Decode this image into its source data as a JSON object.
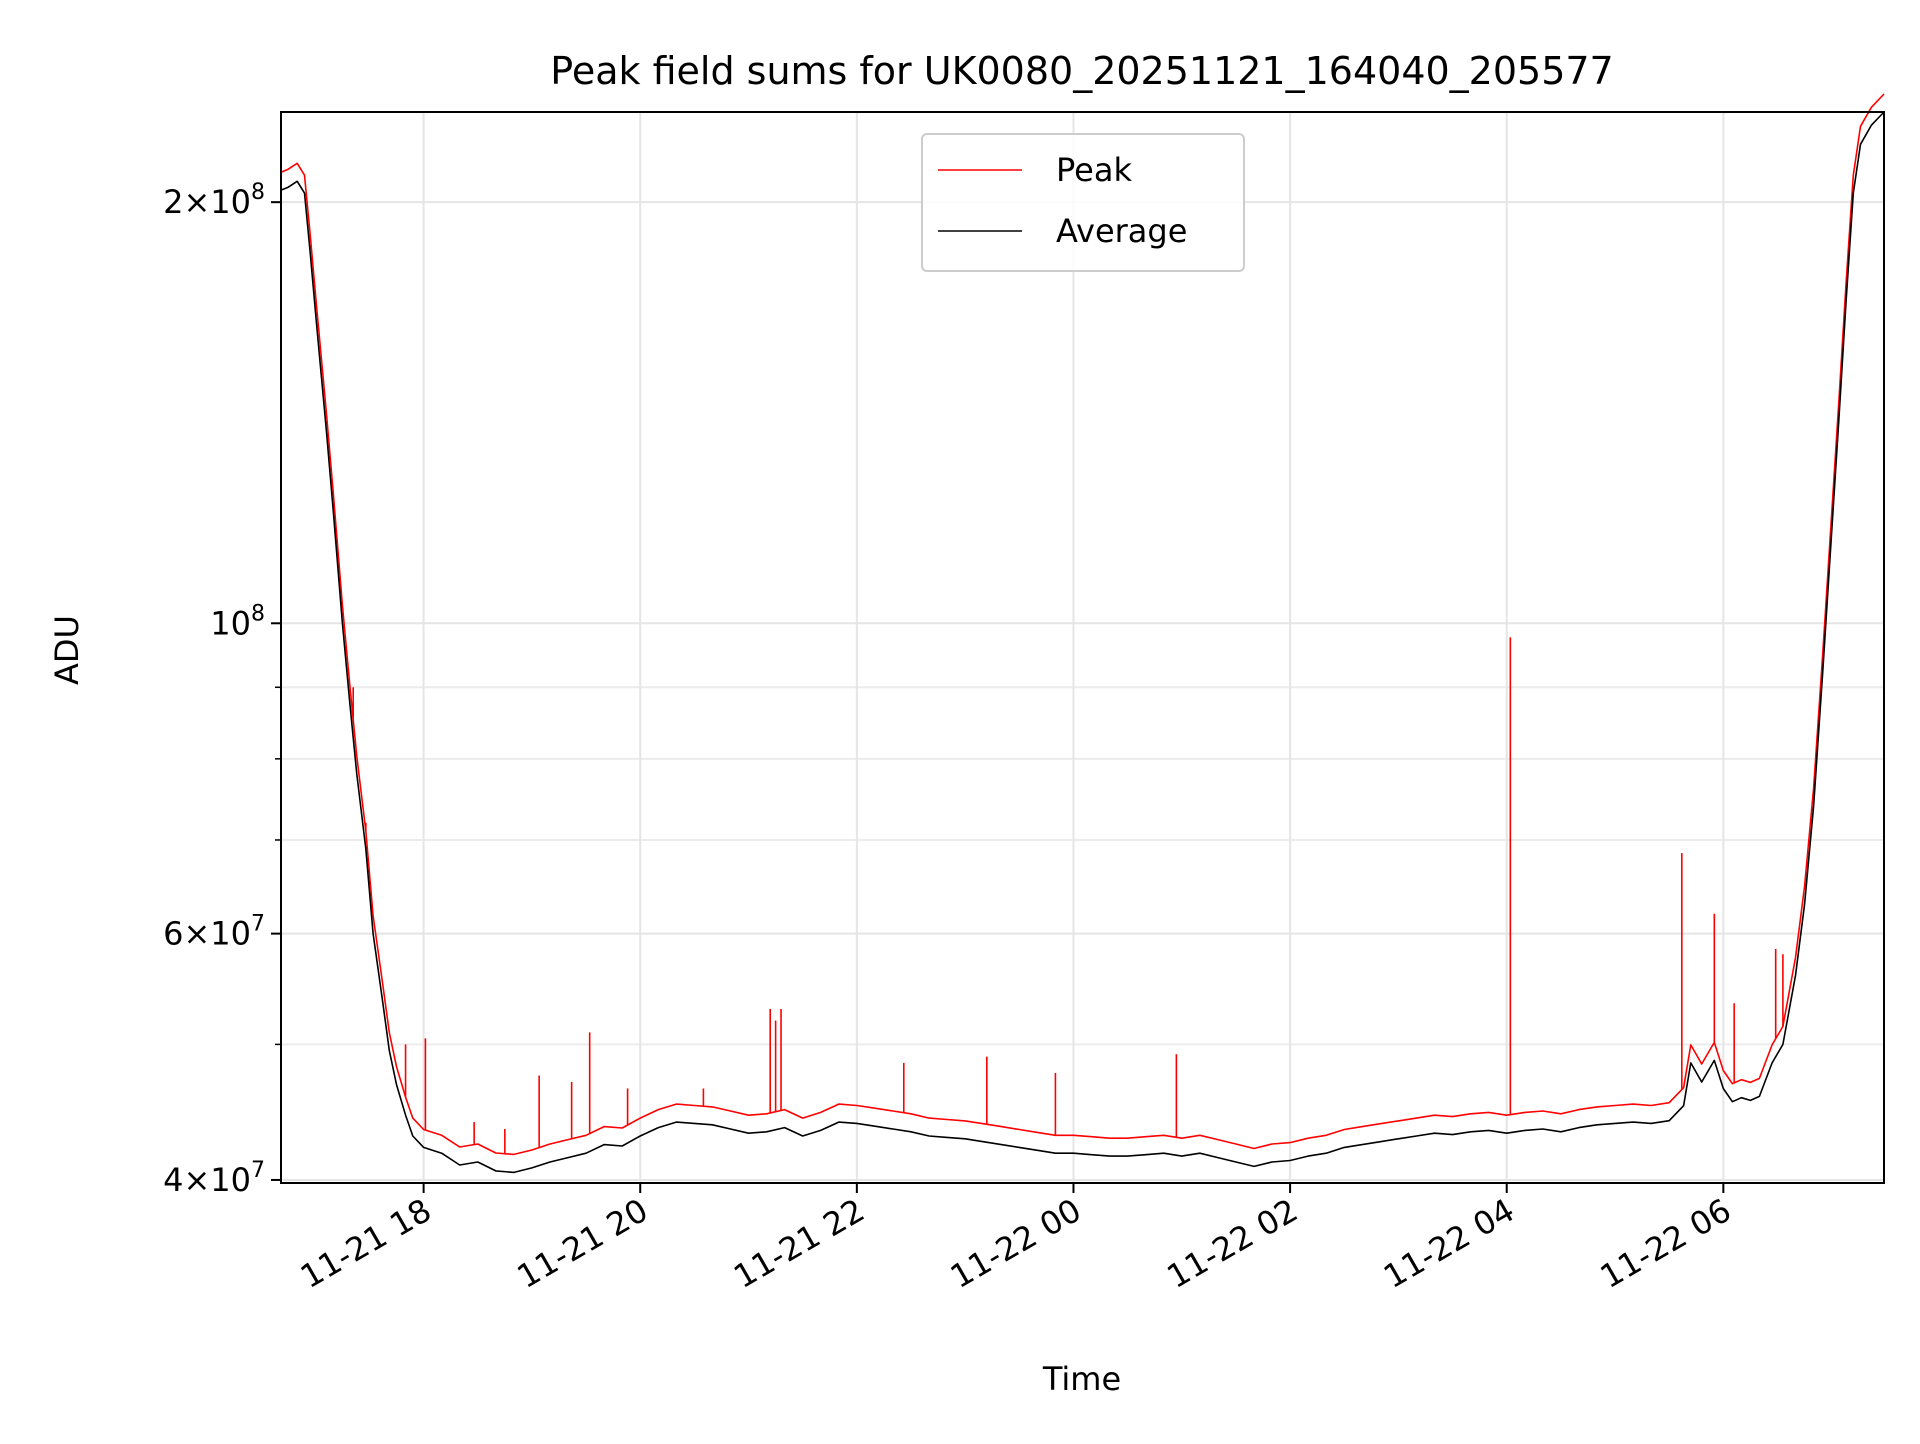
{
  "chart_data": {
    "type": "line",
    "title": "Peak field sums for UK0080_20251121_164040_205577",
    "xlabel": "Time",
    "ylabel": "ADU",
    "y_scale": "log",
    "ylim": [
      39800000,
      232000000
    ],
    "xlim": [
      "2025-11-21 16:41",
      "2025-11-22 07:29"
    ],
    "grid": true,
    "legend_position": "top-center",
    "x_ticks": [
      {
        "value": "2025-11-21 18:00",
        "label": "11-21 18"
      },
      {
        "value": "2025-11-21 20:00",
        "label": "11-21 20"
      },
      {
        "value": "2025-11-21 22:00",
        "label": "11-21 22"
      },
      {
        "value": "2025-11-22 00:00",
        "label": "11-22 00"
      },
      {
        "value": "2025-11-22 02:00",
        "label": "11-22 02"
      },
      {
        "value": "2025-11-22 04:00",
        "label": "11-22 04"
      },
      {
        "value": "2025-11-22 06:00",
        "label": "11-22 06"
      }
    ],
    "y_major_ticks": [
      {
        "value": 40000000,
        "mantissa": "4",
        "base": "10",
        "exp": "7"
      },
      {
        "value": 60000000,
        "mantissa": "6",
        "base": "10",
        "exp": "7"
      },
      {
        "value": 100000000,
        "mantissa": "",
        "base": "10",
        "exp": "8"
      },
      {
        "value": 200000000,
        "mantissa": "2",
        "base": "10",
        "exp": "8"
      }
    ],
    "y_minor_ticks": [
      50000000,
      70000000,
      80000000,
      90000000
    ],
    "series": [
      {
        "name": "Average",
        "color": "#000000",
        "points": [
          [
            "2025-11-21 16:41",
            204000000
          ],
          [
            "2025-11-21 16:45",
            205000000
          ],
          [
            "2025-11-21 16:50",
            207000000
          ],
          [
            "2025-11-21 16:54",
            203000000
          ],
          [
            "2025-11-21 16:57",
            185000000
          ],
          [
            "2025-11-21 17:01",
            162000000
          ],
          [
            "2025-11-21 17:06",
            138000000
          ],
          [
            "2025-11-21 17:10",
            120000000
          ],
          [
            "2025-11-21 17:15",
            100000000
          ],
          [
            "2025-11-21 17:19",
            88000000
          ],
          [
            "2025-11-21 17:23",
            78000000
          ],
          [
            "2025-11-21 17:28",
            69000000
          ],
          [
            "2025-11-21 17:32",
            60000000
          ],
          [
            "2025-11-21 17:37",
            54000000
          ],
          [
            "2025-11-21 17:41",
            49500000
          ],
          [
            "2025-11-21 17:45",
            46800000
          ],
          [
            "2025-11-21 17:50",
            44500000
          ],
          [
            "2025-11-21 17:54",
            43000000
          ],
          [
            "2025-11-21 18:00",
            42200000
          ],
          [
            "2025-11-21 18:10",
            41800000
          ],
          [
            "2025-11-21 18:20",
            41000000
          ],
          [
            "2025-11-21 18:30",
            41200000
          ],
          [
            "2025-11-21 18:40",
            40600000
          ],
          [
            "2025-11-21 18:50",
            40500000
          ],
          [
            "2025-11-21 19:00",
            40800000
          ],
          [
            "2025-11-21 19:10",
            41200000
          ],
          [
            "2025-11-21 19:20",
            41500000
          ],
          [
            "2025-11-21 19:30",
            41800000
          ],
          [
            "2025-11-21 19:40",
            42400000
          ],
          [
            "2025-11-21 19:50",
            42300000
          ],
          [
            "2025-11-21 20:00",
            43000000
          ],
          [
            "2025-11-21 20:10",
            43600000
          ],
          [
            "2025-11-21 20:20",
            44000000
          ],
          [
            "2025-11-21 20:30",
            43900000
          ],
          [
            "2025-11-21 20:40",
            43800000
          ],
          [
            "2025-11-21 20:50",
            43500000
          ],
          [
            "2025-11-21 21:00",
            43200000
          ],
          [
            "2025-11-21 21:10",
            43300000
          ],
          [
            "2025-11-21 21:20",
            43600000
          ],
          [
            "2025-11-21 21:30",
            43000000
          ],
          [
            "2025-11-21 21:40",
            43400000
          ],
          [
            "2025-11-21 21:50",
            44000000
          ],
          [
            "2025-11-21 22:00",
            43900000
          ],
          [
            "2025-11-21 22:10",
            43700000
          ],
          [
            "2025-11-21 22:20",
            43500000
          ],
          [
            "2025-11-21 22:30",
            43300000
          ],
          [
            "2025-11-21 22:40",
            43000000
          ],
          [
            "2025-11-21 22:50",
            42900000
          ],
          [
            "2025-11-21 23:00",
            42800000
          ],
          [
            "2025-11-21 23:10",
            42600000
          ],
          [
            "2025-11-21 23:20",
            42400000
          ],
          [
            "2025-11-21 23:30",
            42200000
          ],
          [
            "2025-11-21 23:40",
            42000000
          ],
          [
            "2025-11-21 23:50",
            41800000
          ],
          [
            "2025-11-22 00:00",
            41800000
          ],
          [
            "2025-11-22 00:10",
            41700000
          ],
          [
            "2025-11-22 00:20",
            41600000
          ],
          [
            "2025-11-22 00:30",
            41600000
          ],
          [
            "2025-11-22 00:40",
            41700000
          ],
          [
            "2025-11-22 00:50",
            41800000
          ],
          [
            "2025-11-22 01:00",
            41600000
          ],
          [
            "2025-11-22 01:10",
            41800000
          ],
          [
            "2025-11-22 01:20",
            41500000
          ],
          [
            "2025-11-22 01:30",
            41200000
          ],
          [
            "2025-11-22 01:40",
            40900000
          ],
          [
            "2025-11-22 01:50",
            41200000
          ],
          [
            "2025-11-22 02:00",
            41300000
          ],
          [
            "2025-11-22 02:10",
            41600000
          ],
          [
            "2025-11-22 02:20",
            41800000
          ],
          [
            "2025-11-22 02:30",
            42200000
          ],
          [
            "2025-11-22 02:40",
            42400000
          ],
          [
            "2025-11-22 02:50",
            42600000
          ],
          [
            "2025-11-22 03:00",
            42800000
          ],
          [
            "2025-11-22 03:10",
            43000000
          ],
          [
            "2025-11-22 03:20",
            43200000
          ],
          [
            "2025-11-22 03:30",
            43100000
          ],
          [
            "2025-11-22 03:40",
            43300000
          ],
          [
            "2025-11-22 03:50",
            43400000
          ],
          [
            "2025-11-22 04:00",
            43200000
          ],
          [
            "2025-11-22 04:10",
            43400000
          ],
          [
            "2025-11-22 04:20",
            43500000
          ],
          [
            "2025-11-22 04:30",
            43300000
          ],
          [
            "2025-11-22 04:40",
            43600000
          ],
          [
            "2025-11-22 04:50",
            43800000
          ],
          [
            "2025-11-22 05:00",
            43900000
          ],
          [
            "2025-11-22 05:10",
            44000000
          ],
          [
            "2025-11-22 05:20",
            43900000
          ],
          [
            "2025-11-22 05:30",
            44100000
          ],
          [
            "2025-11-22 05:38",
            45200000
          ],
          [
            "2025-11-22 05:42",
            48500000
          ],
          [
            "2025-11-22 05:48",
            47000000
          ],
          [
            "2025-11-22 05:55",
            48700000
          ],
          [
            "2025-11-22 06:00",
            46500000
          ],
          [
            "2025-11-22 06:05",
            45500000
          ],
          [
            "2025-11-22 06:10",
            45800000
          ],
          [
            "2025-11-22 06:15",
            45600000
          ],
          [
            "2025-11-22 06:20",
            45900000
          ],
          [
            "2025-11-22 06:27",
            48500000
          ],
          [
            "2025-11-22 06:33",
            50000000
          ],
          [
            "2025-11-22 06:40",
            56000000
          ],
          [
            "2025-11-22 06:45",
            63000000
          ],
          [
            "2025-11-22 06:50",
            74000000
          ],
          [
            "2025-11-22 06:55",
            92000000
          ],
          [
            "2025-11-22 07:00",
            116000000
          ],
          [
            "2025-11-22 07:04",
            140000000
          ],
          [
            "2025-11-22 07:08",
            170000000
          ],
          [
            "2025-11-22 07:12",
            203000000
          ],
          [
            "2025-11-22 07:16",
            220000000
          ],
          [
            "2025-11-22 07:22",
            227000000
          ],
          [
            "2025-11-22 07:29",
            232000000
          ]
        ]
      },
      {
        "name": "Peak",
        "color": "#ff0000",
        "offset_ratio": 1.03,
        "spikes": [
          [
            "2025-11-21 17:21",
            90000000
          ],
          [
            "2025-11-21 17:28",
            72000000
          ],
          [
            "2025-11-21 17:50",
            50000000
          ],
          [
            "2025-11-21 18:01",
            50500000
          ],
          [
            "2025-11-21 18:28",
            44000000
          ],
          [
            "2025-11-21 18:45",
            43500000
          ],
          [
            "2025-11-21 19:04",
            47500000
          ],
          [
            "2025-11-21 19:22",
            47000000
          ],
          [
            "2025-11-21 19:32",
            51000000
          ],
          [
            "2025-11-21 19:53",
            46500000
          ],
          [
            "2025-11-21 20:35",
            46500000
          ],
          [
            "2025-11-21 21:12",
            53000000
          ],
          [
            "2025-11-21 21:15",
            52000000
          ],
          [
            "2025-11-21 21:18",
            53000000
          ],
          [
            "2025-11-21 22:26",
            48500000
          ],
          [
            "2025-11-21 23:12",
            49000000
          ],
          [
            "2025-11-21 23:50",
            47700000
          ],
          [
            "2025-11-22 00:57",
            49200000
          ],
          [
            "2025-11-22 04:02",
            97700000
          ],
          [
            "2025-11-22 05:37",
            68500000
          ],
          [
            "2025-11-22 05:55",
            62000000
          ],
          [
            "2025-11-22 06:06",
            53500000
          ],
          [
            "2025-11-22 06:29",
            58500000
          ],
          [
            "2025-11-22 06:33",
            58000000
          ]
        ]
      }
    ]
  }
}
